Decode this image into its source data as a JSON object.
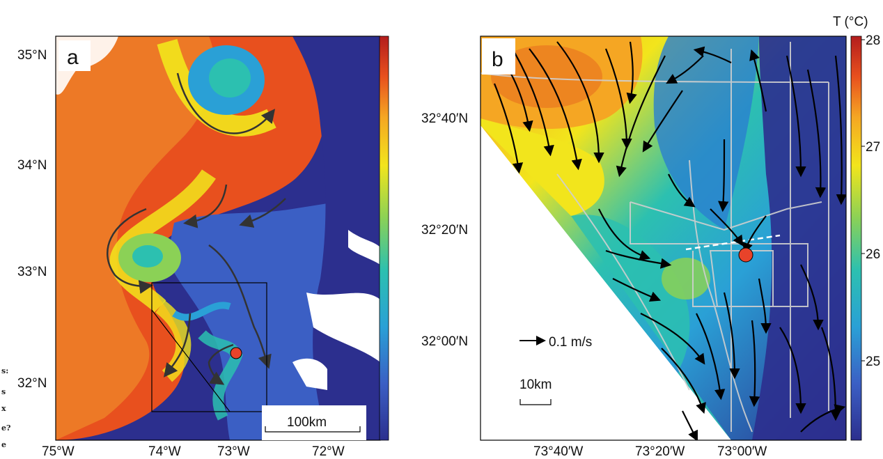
{
  "panel_a": {
    "label": "a",
    "lat_ticks": [
      "35°N",
      "34°N",
      "33°N",
      "32°N"
    ],
    "lon_ticks": [
      "75°W",
      "74°W",
      "73°W",
      "72°W"
    ],
    "scale_bar": "100km"
  },
  "panel_b": {
    "label": "b",
    "lat_ticks": [
      "32°40′N",
      "32°20′N",
      "32°00′N"
    ],
    "lon_ticks": [
      "73°40′W",
      "73°20′W",
      "73°00′W"
    ],
    "velocity_ref": "0.1 m/s",
    "scale_bar": "10km"
  },
  "colorbar": {
    "title": "T (°C)",
    "ticks": [
      "28",
      "27",
      "26",
      "25"
    ],
    "stops": [
      "#2c2f8e",
      "#3b5fc4",
      "#2aa0d6",
      "#2cc0b0",
      "#8bd156",
      "#f2e51c",
      "#f5a623",
      "#e8501e",
      "#b31d1d"
    ]
  },
  "margin_note": [
    "s:",
    "s",
    "x",
    "e?",
    "e"
  ],
  "marker_color": "#e8432a"
}
